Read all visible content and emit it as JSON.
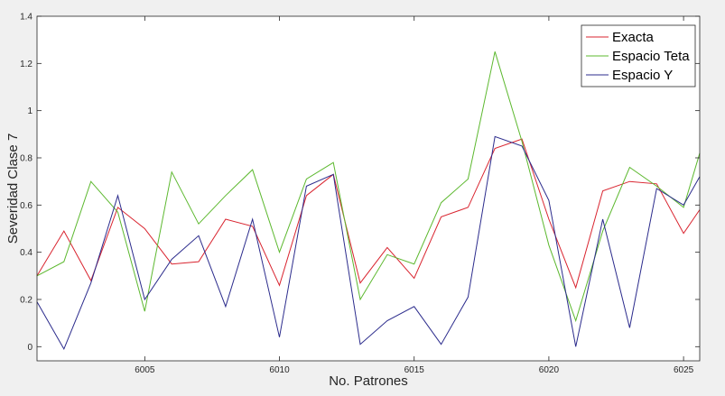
{
  "chart_data": {
    "type": "line",
    "xlabel": "No. Patrones",
    "ylabel": "Severidad Clase 7",
    "xlim": [
      6001,
      6025.6
    ],
    "ylim": [
      -0.06,
      1.4
    ],
    "xticks": [
      6005,
      6010,
      6015,
      6020,
      6025
    ],
    "yticks": [
      0,
      0.2,
      0.4,
      0.6,
      0.8,
      1,
      1.2,
      1.4
    ],
    "grid": false,
    "legend_position": "top-right",
    "x": [
      6001,
      6002,
      6003,
      6004,
      6005,
      6006,
      6007,
      6008,
      6009,
      6010,
      6011,
      6012,
      6013,
      6014,
      6015,
      6016,
      6017,
      6018,
      6019,
      6020,
      6021,
      6022,
      6023,
      6024,
      6025,
      6025.6
    ],
    "series": [
      {
        "name": "Exacta",
        "color": "#d9242f",
        "values": [
          0.3,
          0.49,
          0.28,
          0.59,
          0.5,
          0.35,
          0.36,
          0.54,
          0.51,
          0.26,
          0.64,
          0.73,
          0.27,
          0.42,
          0.29,
          0.55,
          0.59,
          0.84,
          0.88,
          0.54,
          0.25,
          0.66,
          0.7,
          0.69,
          0.48,
          0.58
        ]
      },
      {
        "name": "Espacio Teta",
        "color": "#5cb82e",
        "values": [
          0.3,
          0.36,
          0.7,
          0.57,
          0.15,
          0.74,
          0.52,
          0.64,
          0.75,
          0.4,
          0.71,
          0.78,
          0.2,
          0.39,
          0.35,
          0.61,
          0.71,
          1.25,
          0.87,
          0.43,
          0.11,
          0.49,
          0.76,
          0.68,
          0.59,
          0.82
        ]
      },
      {
        "name": "Espacio Y",
        "color": "#2b2b8c",
        "values": [
          0.19,
          -0.01,
          0.27,
          0.64,
          0.2,
          0.37,
          0.47,
          0.17,
          0.54,
          0.04,
          0.68,
          0.73,
          0.01,
          0.11,
          0.17,
          0.01,
          0.21,
          0.89,
          0.85,
          0.62,
          0.0,
          0.54,
          0.08,
          0.67,
          0.6,
          0.72
        ]
      }
    ]
  }
}
